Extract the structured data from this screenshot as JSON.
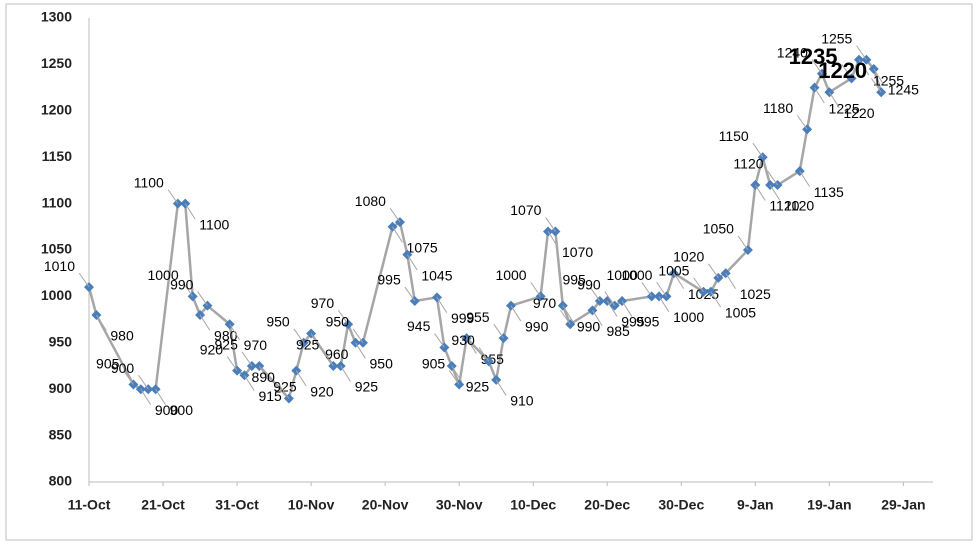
{
  "chart_data": {
    "type": "line",
    "x": [
      "11-Oct",
      "12-Oct",
      "17-Oct",
      "18-Oct",
      "19-Oct",
      "20-Oct",
      "23-Oct",
      "24-Oct",
      "25-Oct",
      "26-Oct",
      "27-Oct",
      "30-Oct",
      "31-Oct",
      "1-Nov",
      "2-Nov",
      "3-Nov",
      "7-Nov",
      "8-Nov",
      "9-Nov",
      "10-Nov",
      "13-Nov",
      "14-Nov",
      "15-Nov",
      "16-Nov",
      "17-Nov",
      "21-Nov",
      "22-Nov",
      "23-Nov",
      "24-Nov",
      "27-Nov",
      "28-Nov",
      "29-Nov",
      "30-Nov",
      "1-Dec",
      "4-Dec",
      "5-Dec",
      "6-Dec",
      "7-Dec",
      "11-Dec",
      "12-Dec",
      "13-Dec",
      "14-Dec",
      "15-Dec",
      "18-Dec",
      "19-Dec",
      "20-Dec",
      "21-Dec",
      "22-Dec",
      "26-Dec",
      "27-Dec",
      "28-Dec",
      "29-Dec",
      "2-Jan",
      "3-Jan",
      "4-Jan",
      "5-Jan",
      "8-Jan",
      "9-Jan",
      "10-Jan",
      "11-Jan",
      "12-Jan",
      "15-Jan",
      "16-Jan",
      "17-Jan",
      "18-Jan",
      "19-Jan",
      "22-Jan",
      "23-Jan",
      "24-Jan",
      "25-Jan",
      "26-Jan"
    ],
    "series": [
      {
        "color": "#4a7ebb",
        "line_color": "#a6a6a6",
        "values": [
          1010,
          980,
          905,
          900,
          900,
          900,
          1100,
          1100,
          1000,
          980,
          990,
          970,
          920,
          915,
          925,
          925,
          890,
          920,
          950,
          960,
          925,
          925,
          970,
          950,
          950,
          1075,
          1080,
          1045,
          995,
          999,
          945,
          925,
          905,
          955,
          930,
          910,
          955,
          990,
          1000,
          1070,
          1070,
          990,
          970,
          985,
          995,
          995,
          990,
          995,
          1000,
          1000,
          1000,
          1025,
          1005,
          1005,
          1020,
          1025,
          1050,
          1120,
          1150,
          1120,
          1120,
          1135,
          1180,
          1225,
          1240,
          1220,
          1235,
          1255,
          1255,
          1245,
          1220
        ]
      }
    ],
    "xlim": [
      "11-Oct",
      "2-Feb"
    ],
    "xticks": [
      "11-Oct",
      "21-Oct",
      "31-Oct",
      "10-Nov",
      "20-Nov",
      "30-Nov",
      "10-Dec",
      "20-Dec",
      "30-Dec",
      "9-Jan",
      "19-Jan",
      "29-Jan"
    ],
    "ylim": [
      800,
      1300
    ],
    "yticks": [
      800,
      850,
      900,
      950,
      1000,
      1050,
      1100,
      1150,
      1200,
      1250,
      1300
    ],
    "grid": false
  }
}
